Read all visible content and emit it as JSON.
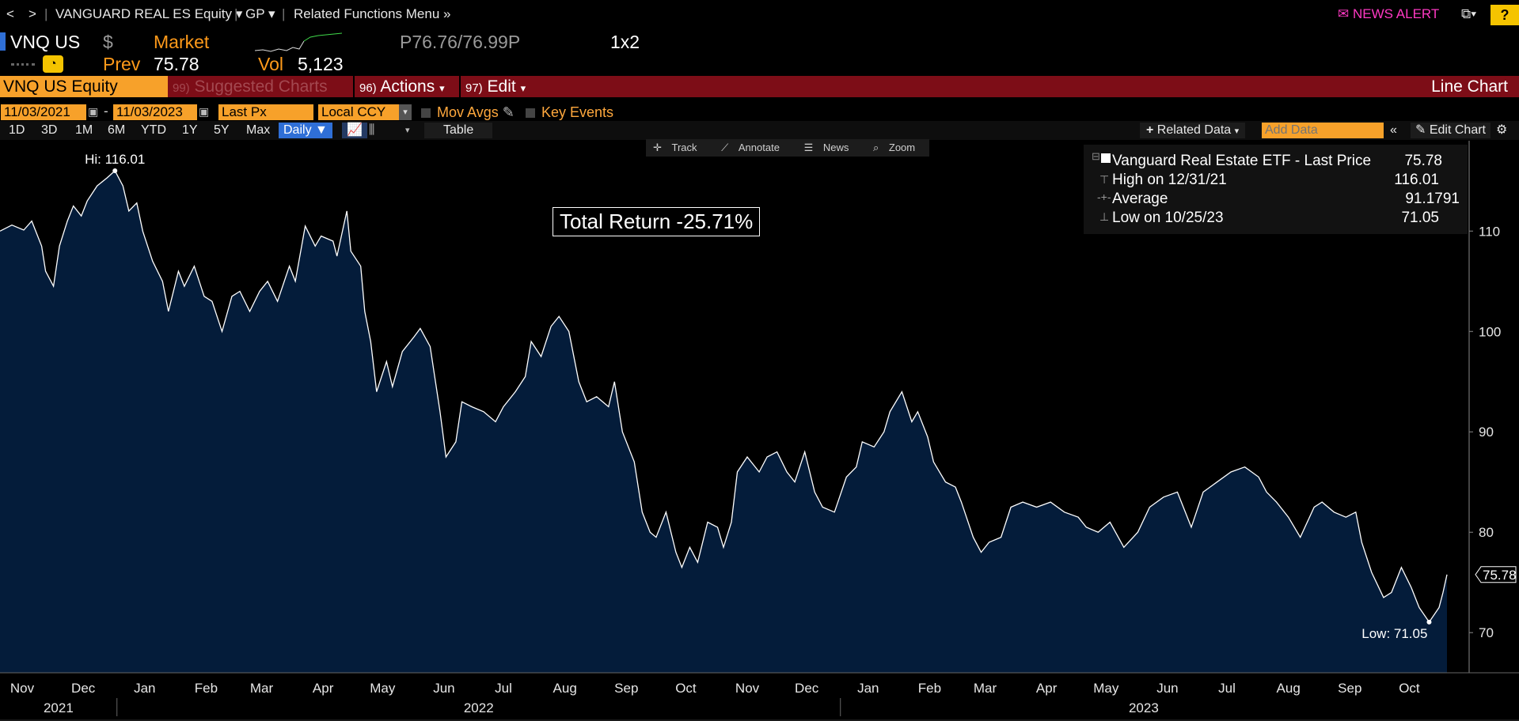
{
  "topnav": {
    "back": "<",
    "forward": ">",
    "security": "VANGUARD REAL ES Equity",
    "function": "GP",
    "related": "Related Functions Menu",
    "news_alert": "NEWS ALERT",
    "help": "?"
  },
  "ticker": {
    "symbol": "VNQ US",
    "currency": "$",
    "market": "Market",
    "prev_label": "Prev",
    "prev_value": "75.78",
    "vol_label": "Vol",
    "vol_value": "5,123",
    "bid_ask": "P76.76/76.99P",
    "size": "1x2"
  },
  "redbar": {
    "security_field": "VNQ US Equity",
    "suggested_num": "99)",
    "suggested": "Suggested Charts",
    "actions_num": "96)",
    "actions": "Actions",
    "edit_num": "97)",
    "edit": "Edit",
    "chart_type_label": "Line Chart"
  },
  "controls": {
    "start_date": "11/03/2021",
    "end_date": "11/03/2023",
    "dash": "-",
    "field": "Last Px",
    "currency": "Local CCY",
    "mov_avgs": "Mov Avgs",
    "key_events": "Key Events",
    "periods": [
      "1D",
      "3D",
      "1M",
      "6M",
      "YTD",
      "1Y",
      "5Y",
      "Max"
    ],
    "frequency": "Daily",
    "table": "Table",
    "related_data": "Related Data",
    "add_data_placeholder": "Add Data",
    "edit_chart": "Edit Chart"
  },
  "tools": {
    "track": "Track",
    "annotate": "Annotate",
    "news": "News",
    "zoom": "Zoom"
  },
  "legend": {
    "title": "Vanguard Real Estate ETF - Last Price",
    "title_value": "75.78",
    "high_label": "High on 12/31/21",
    "high_value": "116.01",
    "avg_label": "Average",
    "avg_value": "91.1791",
    "low_label": "Low on 10/25/23",
    "low_value": "71.05"
  },
  "total_return": "Total Return -25.71%",
  "colors": {
    "accent": "#f7a12a",
    "redbar": "#7d0d17",
    "fill": "#041c3a",
    "news": "#ff39c3",
    "selected": "#2f6fd6"
  },
  "chart_data": {
    "type": "area",
    "title": "",
    "xlabel": "",
    "ylabel": "",
    "ylim": [
      66,
      119
    ],
    "yticks": [
      70,
      80,
      90,
      100,
      110
    ],
    "x_start": "2021-11-03",
    "x_end": "2023-11-03",
    "x_month_labels": [
      "Nov",
      "Dec",
      "Jan",
      "Feb",
      "Mar",
      "Apr",
      "May",
      "Jun",
      "Jul",
      "Aug",
      "Sep",
      "Oct",
      "Nov",
      "Dec",
      "Jan",
      "Feb",
      "Mar",
      "Apr",
      "May",
      "Jun",
      "Jul",
      "Aug",
      "Sep",
      "Oct"
    ],
    "x_year_labels": [
      "2021",
      "2022",
      "2023"
    ],
    "annotations": {
      "high": "Hi: 116.01",
      "low": "Low: 71.05",
      "last": "75.78"
    },
    "series": [
      {
        "values": [
          [
            "2021-11-03",
            110.0
          ],
          [
            "2021-11-09",
            110.6
          ],
          [
            "2021-11-15",
            110.1
          ],
          [
            "2021-11-19",
            111.0
          ],
          [
            "2021-11-24",
            108.5
          ],
          [
            "2021-11-26",
            106.0
          ],
          [
            "2021-11-30",
            104.5
          ],
          [
            "2021-12-03",
            108.5
          ],
          [
            "2021-12-07",
            111.0
          ],
          [
            "2021-12-10",
            112.5
          ],
          [
            "2021-12-14",
            111.5
          ],
          [
            "2021-12-17",
            113.0
          ],
          [
            "2021-12-22",
            114.5
          ],
          [
            "2021-12-27",
            115.3
          ],
          [
            "2021-12-31",
            116.01
          ],
          [
            "2022-01-04",
            114.5
          ],
          [
            "2022-01-07",
            112.0
          ],
          [
            "2022-01-11",
            112.8
          ],
          [
            "2022-01-14",
            110.0
          ],
          [
            "2022-01-19",
            107.0
          ],
          [
            "2022-01-24",
            105.0
          ],
          [
            "2022-01-27",
            102.0
          ],
          [
            "2022-02-01",
            106.0
          ],
          [
            "2022-02-04",
            104.5
          ],
          [
            "2022-02-09",
            106.5
          ],
          [
            "2022-02-14",
            103.5
          ],
          [
            "2022-02-18",
            103.0
          ],
          [
            "2022-02-23",
            100.0
          ],
          [
            "2022-02-28",
            103.5
          ],
          [
            "2022-03-04",
            104.0
          ],
          [
            "2022-03-09",
            102.0
          ],
          [
            "2022-03-14",
            104.0
          ],
          [
            "2022-03-18",
            105.0
          ],
          [
            "2022-03-23",
            103.0
          ],
          [
            "2022-03-29",
            106.5
          ],
          [
            "2022-04-01",
            105.0
          ],
          [
            "2022-04-06",
            110.5
          ],
          [
            "2022-04-11",
            108.5
          ],
          [
            "2022-04-14",
            109.5
          ],
          [
            "2022-04-20",
            109.0
          ],
          [
            "2022-04-22",
            107.5
          ],
          [
            "2022-04-27",
            112.0
          ],
          [
            "2022-04-29",
            108.0
          ],
          [
            "2022-05-04",
            106.5
          ],
          [
            "2022-05-06",
            102.0
          ],
          [
            "2022-05-09",
            99.0
          ],
          [
            "2022-05-12",
            94.0
          ],
          [
            "2022-05-17",
            97.0
          ],
          [
            "2022-05-20",
            94.5
          ],
          [
            "2022-05-25",
            98.0
          ],
          [
            "2022-05-31",
            99.5
          ],
          [
            "2022-06-03",
            100.3
          ],
          [
            "2022-06-08",
            98.5
          ],
          [
            "2022-06-13",
            92.0
          ],
          [
            "2022-06-16",
            87.5
          ],
          [
            "2022-06-21",
            89.0
          ],
          [
            "2022-06-24",
            93.0
          ],
          [
            "2022-06-29",
            92.5
          ],
          [
            "2022-07-05",
            92.0
          ],
          [
            "2022-07-11",
            91.0
          ],
          [
            "2022-07-15",
            92.5
          ],
          [
            "2022-07-21",
            94.0
          ],
          [
            "2022-07-26",
            95.5
          ],
          [
            "2022-07-29",
            99.0
          ],
          [
            "2022-08-03",
            97.5
          ],
          [
            "2022-08-08",
            100.5
          ],
          [
            "2022-08-12",
            101.5
          ],
          [
            "2022-08-17",
            100.0
          ],
          [
            "2022-08-22",
            95.0
          ],
          [
            "2022-08-26",
            93.0
          ],
          [
            "2022-08-31",
            93.5
          ],
          [
            "2022-09-06",
            92.5
          ],
          [
            "2022-09-09",
            95.0
          ],
          [
            "2022-09-13",
            90.0
          ],
          [
            "2022-09-19",
            87.0
          ],
          [
            "2022-09-23",
            82.0
          ],
          [
            "2022-09-27",
            80.0
          ],
          [
            "2022-09-30",
            79.5
          ],
          [
            "2022-10-05",
            82.0
          ],
          [
            "2022-10-10",
            78.0
          ],
          [
            "2022-10-13",
            76.5
          ],
          [
            "2022-10-17",
            78.5
          ],
          [
            "2022-10-21",
            77.0
          ],
          [
            "2022-10-26",
            81.0
          ],
          [
            "2022-10-31",
            80.5
          ],
          [
            "2022-11-03",
            78.5
          ],
          [
            "2022-11-07",
            81.0
          ],
          [
            "2022-11-10",
            86.0
          ],
          [
            "2022-11-15",
            87.5
          ],
          [
            "2022-11-21",
            86.0
          ],
          [
            "2022-11-25",
            87.5
          ],
          [
            "2022-11-30",
            88.0
          ],
          [
            "2022-12-05",
            86.0
          ],
          [
            "2022-12-09",
            85.0
          ],
          [
            "2022-12-14",
            88.0
          ],
          [
            "2022-12-19",
            84.0
          ],
          [
            "2022-12-23",
            82.5
          ],
          [
            "2022-12-29",
            82.0
          ],
          [
            "2023-01-04",
            85.5
          ],
          [
            "2023-01-09",
            86.5
          ],
          [
            "2023-01-12",
            89.0
          ],
          [
            "2023-01-18",
            88.5
          ],
          [
            "2023-01-23",
            90.0
          ],
          [
            "2023-01-26",
            92.0
          ],
          [
            "2023-02-01",
            94.0
          ],
          [
            "2023-02-06",
            91.0
          ],
          [
            "2023-02-09",
            92.0
          ],
          [
            "2023-02-14",
            89.5
          ],
          [
            "2023-02-17",
            87.0
          ],
          [
            "2023-02-23",
            85.0
          ],
          [
            "2023-02-28",
            84.5
          ],
          [
            "2023-03-03",
            83.0
          ],
          [
            "2023-03-09",
            79.5
          ],
          [
            "2023-03-13",
            78.0
          ],
          [
            "2023-03-17",
            79.0
          ],
          [
            "2023-03-23",
            79.5
          ],
          [
            "2023-03-28",
            82.5
          ],
          [
            "2023-04-03",
            83.0
          ],
          [
            "2023-04-10",
            82.5
          ],
          [
            "2023-04-17",
            83.0
          ],
          [
            "2023-04-24",
            82.0
          ],
          [
            "2023-05-01",
            81.5
          ],
          [
            "2023-05-05",
            80.5
          ],
          [
            "2023-05-11",
            80.0
          ],
          [
            "2023-05-17",
            81.0
          ],
          [
            "2023-05-24",
            78.5
          ],
          [
            "2023-05-31",
            80.0
          ],
          [
            "2023-06-06",
            82.5
          ],
          [
            "2023-06-13",
            83.5
          ],
          [
            "2023-06-20",
            84.0
          ],
          [
            "2023-06-27",
            80.5
          ],
          [
            "2023-07-03",
            84.0
          ],
          [
            "2023-07-10",
            85.0
          ],
          [
            "2023-07-17",
            86.0
          ],
          [
            "2023-07-24",
            86.5
          ],
          [
            "2023-07-31",
            85.5
          ],
          [
            "2023-08-04",
            84.0
          ],
          [
            "2023-08-09",
            83.0
          ],
          [
            "2023-08-15",
            81.5
          ],
          [
            "2023-08-21",
            79.5
          ],
          [
            "2023-08-28",
            82.5
          ],
          [
            "2023-09-01",
            83.0
          ],
          [
            "2023-09-07",
            82.0
          ],
          [
            "2023-09-13",
            81.5
          ],
          [
            "2023-09-18",
            82.0
          ],
          [
            "2023-09-21",
            79.0
          ],
          [
            "2023-09-26",
            76.0
          ],
          [
            "2023-10-02",
            73.5
          ],
          [
            "2023-10-06",
            74.0
          ],
          [
            "2023-10-11",
            76.5
          ],
          [
            "2023-10-16",
            74.5
          ],
          [
            "2023-10-20",
            72.5
          ],
          [
            "2023-10-25",
            71.05
          ],
          [
            "2023-10-30",
            72.5
          ],
          [
            "2023-11-01",
            74.0
          ],
          [
            "2023-11-03",
            75.78
          ]
        ]
      }
    ]
  }
}
